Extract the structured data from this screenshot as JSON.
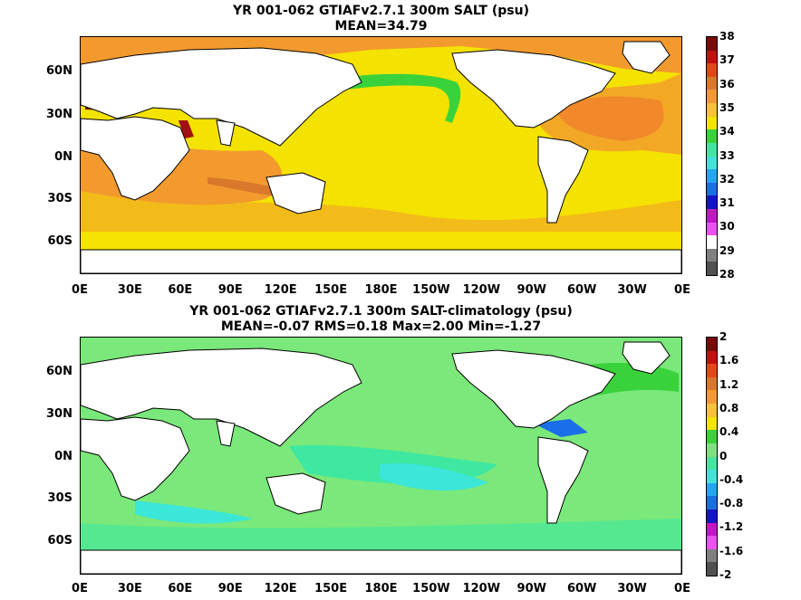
{
  "panels": [
    {
      "title_line1": "YR 001-062 GTIAFv2.7.1 300m SALT (psu)",
      "title_line2": "MEAN=34.79",
      "colorbar": {
        "labels": [
          "38",
          "37",
          "36",
          "35",
          "34",
          "33",
          "32",
          "31",
          "30",
          "29",
          "28"
        ],
        "colors": [
          "#7a0a0a",
          "#c40f0f",
          "#e8441c",
          "#d9782c",
          "#f29a2e",
          "#f6c332",
          "#f5e400",
          "#3ad23a",
          "#3ee8a0",
          "#3ce6d8",
          "#1eaaf0",
          "#1a6ee8",
          "#1414c8",
          "#c814c8",
          "#f050f0",
          "#ffffff",
          "#808080",
          "#505050"
        ]
      },
      "ocean_color": "#f4e200",
      "features": [
        {
          "name": "atlantic-high-salinity",
          "color": "#e8441c"
        },
        {
          "name": "red-sea-mediterranean",
          "color": "#a01010"
        },
        {
          "name": "south-pacific-tongue",
          "color": "#d9782c"
        },
        {
          "name": "north-pacific-low",
          "color": "#3ad23a"
        }
      ]
    },
    {
      "title_line1": "YR 001-062 GTIAFv2.7.1 300m SALT-climatology (psu)",
      "title_line2": "MEAN=-0.07   RMS=0.18   Max=2.00   Min=-1.27",
      "colorbar": {
        "labels": [
          "2",
          "1.6",
          "1.2",
          "0.8",
          "0.4",
          "0",
          "-0.4",
          "-0.8",
          "-1.2",
          "-1.6",
          "-2"
        ],
        "colors": [
          "#7a0a0a",
          "#c40f0f",
          "#e8441c",
          "#d9782c",
          "#f29a2e",
          "#f6c332",
          "#f5e400",
          "#3ad23a",
          "#80e080",
          "#3ee8a0",
          "#3ce6d8",
          "#1eaaf0",
          "#1a6ee8",
          "#1414c8",
          "#c814c8",
          "#f050f0",
          "#808080",
          "#505050"
        ]
      },
      "ocean_color": "#7ae87a"
    }
  ],
  "axes": {
    "x_ticks": [
      "0E",
      "30E",
      "60E",
      "90E",
      "120E",
      "150E",
      "180E",
      "150W",
      "120W",
      "90W",
      "60W",
      "30W",
      "0E"
    ],
    "y_ticks": [
      "60N",
      "30N",
      "0N",
      "30S",
      "60S"
    ]
  }
}
